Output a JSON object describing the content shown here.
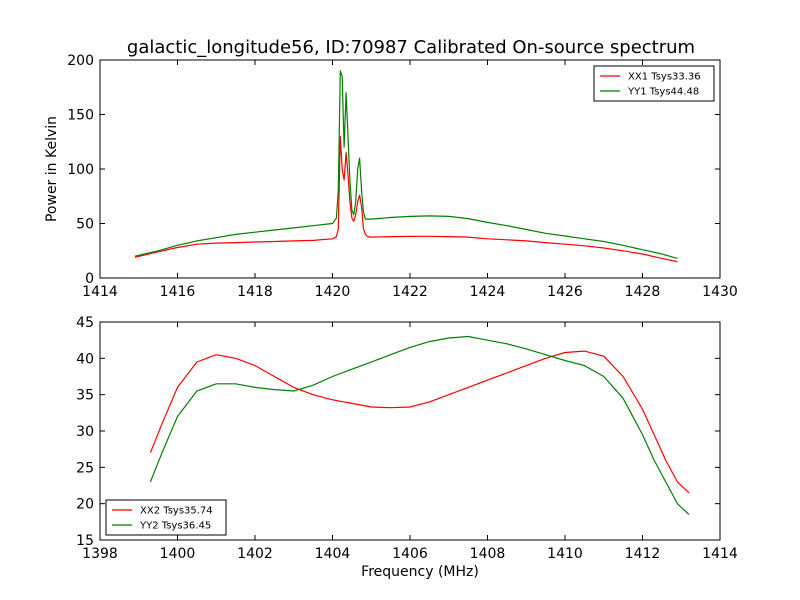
{
  "title": "galactic_longitude56, ID:70987 Calibrated On-source spectrum",
  "chart_data": [
    {
      "type": "line",
      "xlabel": "",
      "ylabel": "Power in Kelvin",
      "xlim": [
        1414,
        1430
      ],
      "ylim": [
        0,
        200
      ],
      "xticks": [
        "1414",
        "1416",
        "1418",
        "1420",
        "1422",
        "1424",
        "1426",
        "1428",
        "1430"
      ],
      "yticks": [
        "0",
        "50",
        "100",
        "150",
        "200"
      ],
      "legend_position": "upper right",
      "grid": false,
      "series": [
        {
          "name": "XX1 Tsys33.36",
          "color": "#ff0000",
          "x": [
            1414.9,
            1415.5,
            1416.0,
            1416.5,
            1417.0,
            1417.5,
            1418.0,
            1418.5,
            1419.0,
            1419.5,
            1420.0,
            1420.1,
            1420.15,
            1420.2,
            1420.25,
            1420.3,
            1420.35,
            1420.4,
            1420.45,
            1420.5,
            1420.55,
            1420.6,
            1420.65,
            1420.7,
            1420.75,
            1420.8,
            1420.85,
            1420.9,
            1421.0,
            1421.5,
            1422.0,
            1422.5,
            1423.0,
            1423.5,
            1424.0,
            1424.5,
            1425.0,
            1425.5,
            1426.0,
            1426.5,
            1427.0,
            1427.5,
            1428.0,
            1428.5,
            1428.9
          ],
          "y": [
            19,
            24,
            28,
            31,
            32,
            32.5,
            33,
            33.5,
            34,
            34.5,
            36,
            38,
            45,
            130,
            100,
            90,
            115,
            95,
            70,
            55,
            52,
            58,
            70,
            76,
            65,
            45,
            40,
            38,
            37.5,
            38,
            38.2,
            38.3,
            38,
            37.5,
            36,
            35,
            34,
            32.5,
            31,
            29.5,
            27.5,
            25,
            22,
            18,
            15
          ]
        },
        {
          "name": "YY1 Tsys44.48",
          "color": "#008000",
          "x": [
            1414.9,
            1415.5,
            1416.0,
            1416.5,
            1417.0,
            1417.5,
            1418.0,
            1418.5,
            1419.0,
            1419.5,
            1420.0,
            1420.1,
            1420.15,
            1420.2,
            1420.25,
            1420.3,
            1420.35,
            1420.4,
            1420.45,
            1420.5,
            1420.55,
            1420.6,
            1420.65,
            1420.7,
            1420.75,
            1420.8,
            1420.85,
            1420.9,
            1421.0,
            1421.5,
            1422.0,
            1422.5,
            1423.0,
            1423.5,
            1424.0,
            1424.5,
            1425.0,
            1425.5,
            1426.0,
            1426.5,
            1427.0,
            1427.5,
            1428.0,
            1428.5,
            1428.9
          ],
          "y": [
            20,
            25,
            30,
            34,
            37,
            40,
            42,
            44,
            46,
            48,
            50,
            55,
            80,
            190,
            185,
            120,
            170,
            130,
            90,
            62,
            58,
            70,
            100,
            110,
            80,
            60,
            54,
            54,
            54,
            55.5,
            56.5,
            57,
            56.5,
            54.5,
            51,
            48,
            44.5,
            41,
            38.5,
            36,
            33.5,
            30,
            26,
            22,
            18
          ]
        }
      ]
    },
    {
      "type": "line",
      "xlabel": "Frequency (MHz)",
      "ylabel": "",
      "xlim": [
        1398,
        1414
      ],
      "ylim": [
        15,
        45
      ],
      "xticks": [
        "1398",
        "1400",
        "1402",
        "1404",
        "1406",
        "1408",
        "1410",
        "1412",
        "1414"
      ],
      "yticks": [
        "15",
        "20",
        "25",
        "30",
        "35",
        "40",
        "45"
      ],
      "legend_position": "lower left",
      "grid": false,
      "series": [
        {
          "name": "XX2 Tsys35.74",
          "color": "#ff0000",
          "x": [
            1399.3,
            1399.6,
            1400.0,
            1400.5,
            1401.0,
            1401.5,
            1402.0,
            1402.5,
            1403.0,
            1403.5,
            1404.0,
            1404.5,
            1405.0,
            1405.5,
            1406.0,
            1406.5,
            1407.0,
            1407.5,
            1408.0,
            1408.5,
            1409.0,
            1409.5,
            1410.0,
            1410.5,
            1411.0,
            1411.5,
            1412.0,
            1412.3,
            1412.6,
            1412.9,
            1413.2
          ],
          "y": [
            27,
            31,
            36,
            39.5,
            40.5,
            40,
            39,
            37.5,
            36,
            35,
            34.3,
            33.8,
            33.3,
            33.2,
            33.3,
            34,
            35,
            36,
            37,
            38,
            39,
            40,
            40.8,
            41,
            40.3,
            37.5,
            33,
            29.5,
            26,
            23,
            21.5
          ]
        },
        {
          "name": "YY2 Tsys36.45",
          "color": "#008000",
          "x": [
            1399.3,
            1399.6,
            1400.0,
            1400.5,
            1401.0,
            1401.5,
            1402.0,
            1402.5,
            1403.0,
            1403.5,
            1404.0,
            1404.5,
            1405.0,
            1405.5,
            1406.0,
            1406.5,
            1407.0,
            1407.5,
            1408.0,
            1408.5,
            1409.0,
            1409.5,
            1410.0,
            1410.5,
            1411.0,
            1411.5,
            1412.0,
            1412.3,
            1412.6,
            1412.9,
            1413.2
          ],
          "y": [
            23,
            27,
            32,
            35.5,
            36.5,
            36.5,
            36,
            35.7,
            35.5,
            36.3,
            37.5,
            38.5,
            39.5,
            40.5,
            41.5,
            42.3,
            42.8,
            43,
            42.5,
            42,
            41.3,
            40.5,
            39.7,
            39,
            37.5,
            34.5,
            29.5,
            26,
            23,
            20,
            18.5
          ]
        }
      ]
    }
  ]
}
